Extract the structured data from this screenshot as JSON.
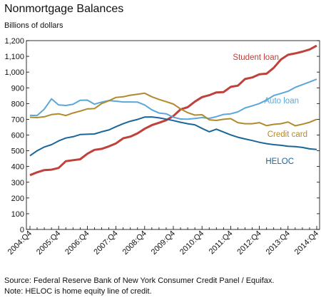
{
  "chart_data": {
    "type": "line",
    "title": "Nonmortgage Balances",
    "ylabel": "Billions of dollars",
    "ylim": [
      0,
      1200
    ],
    "yticks": [
      0,
      100,
      200,
      300,
      400,
      500,
      600,
      700,
      800,
      900,
      "1,000",
      "1,100",
      "1,200"
    ],
    "x": [
      "2004:Q4",
      "2005:Q1",
      "2005:Q2",
      "2005:Q3",
      "2005:Q4",
      "2006:Q1",
      "2006:Q2",
      "2006:Q3",
      "2006:Q4",
      "2007:Q1",
      "2007:Q2",
      "2007:Q3",
      "2007:Q4",
      "2008:Q1",
      "2008:Q2",
      "2008:Q3",
      "2008:Q4",
      "2009:Q1",
      "2009:Q2",
      "2009:Q3",
      "2009:Q4",
      "2010:Q1",
      "2010:Q2",
      "2010:Q3",
      "2010:Q4",
      "2011:Q1",
      "2011:Q2",
      "2011:Q3",
      "2011:Q4",
      "2012:Q1",
      "2012:Q2",
      "2012:Q3",
      "2012:Q4",
      "2013:Q1",
      "2013:Q2",
      "2013:Q3",
      "2013:Q4",
      "2014:Q1",
      "2014:Q2",
      "2014:Q3",
      "2014:Q4"
    ],
    "xtick_labels": [
      "2004:Q4",
      "2005:Q4",
      "2006:Q4",
      "2007:Q4",
      "2008:Q4",
      "2009:Q4",
      "2010:Q4",
      "2011:Q4",
      "2012:Q4",
      "2013:Q4",
      "2014:Q4"
    ],
    "series": [
      {
        "name": "Student loan",
        "color": "#c0403a",
        "values": [
          345,
          363,
          377,
          380,
          391,
          434,
          440,
          446,
          481,
          506,
          512,
          528,
          547,
          579,
          590,
          611,
          640,
          663,
          678,
          694,
          721,
          763,
          777,
          812,
          841,
          853,
          871,
          873,
          906,
          914,
          956,
          966,
          986,
          990,
          1027,
          1080,
          1110,
          1119,
          1130,
          1144,
          1168
        ]
      },
      {
        "name": "Auto loan",
        "color": "#5aa7da",
        "values": [
          725,
          724,
          765,
          830,
          791,
          788,
          795,
          821,
          822,
          796,
          809,
          819,
          815,
          810,
          810,
          809,
          791,
          760,
          740,
          735,
          713,
          702,
          701,
          705,
          711,
          706,
          717,
          731,
          735,
          747,
          772,
          785,
          800,
          823,
          851,
          864,
          878,
          903,
          920,
          937,
          955
        ]
      },
      {
        "name": "Credit card",
        "color": "#b08a2e",
        "values": [
          713,
          711,
          716,
          730,
          735,
          724,
          740,
          752,
          766,
          768,
          800,
          818,
          839,
          843,
          853,
          859,
          866,
          843,
          826,
          812,
          797,
          766,
          742,
          727,
          729,
          697,
          693,
          700,
          704,
          679,
          672,
          672,
          679,
          660,
          668,
          672,
          683,
          659,
          669,
          681,
          700
        ]
      },
      {
        "name": "HELOC",
        "color": "#1a6699",
        "values": [
          468,
          500,
          524,
          539,
          563,
          581,
          589,
          603,
          605,
          607,
          621,
          632,
          653,
          672,
          688,
          699,
          714,
          715,
          709,
          701,
          692,
          681,
          672,
          665,
          642,
          621,
          637,
          619,
          601,
          586,
          575,
          565,
          554,
          545,
          539,
          535,
          529,
          526,
          521,
          512,
          508
        ]
      }
    ]
  },
  "source": "Source: Federal Reserve Bank of New York Consumer Credit Panel / Equifax.",
  "note": "Note: HELOC is home equity line of credit."
}
